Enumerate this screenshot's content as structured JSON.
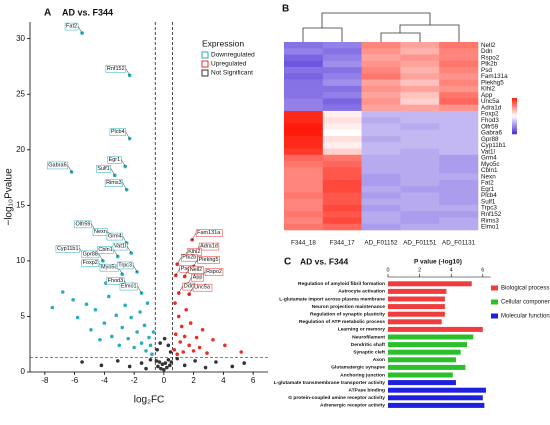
{
  "chart_data": [
    {
      "type": "scatter",
      "panel": "A",
      "title": "AD vs. F344",
      "xlabel": "log₂FC",
      "ylabel": "−log₁₀Pvalue",
      "xlim": [
        -9,
        7
      ],
      "ylim": [
        0,
        31.5
      ],
      "xticks": [
        -8,
        -6,
        -4,
        -2,
        0,
        2,
        4,
        6
      ],
      "yticks": [
        0,
        5,
        10,
        15,
        20,
        25,
        30
      ],
      "thresholds": {
        "x": [
          -0.58,
          0.58
        ],
        "y": 1.3
      },
      "legend": {
        "title": "Expression",
        "position": "top-right"
      },
      "series": [
        {
          "name": "Downregulated",
          "color": "#2aaec0",
          "x": [
            -5.5,
            -2.3,
            -2.3,
            -6.2,
            -2.6,
            -3.3,
            -2.5,
            -4.6,
            -3.5,
            -2.5,
            -5.4,
            -4.1,
            -3.1,
            -2.2,
            -4.1,
            -2.8,
            -1.8,
            -2.4,
            -1.5,
            -6.8,
            -6.1,
            -5.8,
            -5.2,
            -4.9,
            -4.6,
            -4.3,
            -4.0,
            -3.7,
            -3.5,
            -3.2,
            -3.0,
            -2.8,
            -2.6,
            -2.4,
            -2.2,
            -2.0,
            -1.8,
            -1.6,
            -1.5,
            -1.3,
            -1.2,
            -1.0,
            -0.9,
            -0.8,
            -0.7,
            -7.5,
            -3.9,
            -2.1,
            -1.1
          ],
          "y": [
            30.5,
            26.7,
            21.0,
            18.0,
            18.5,
            17.7,
            16.4,
            12.7,
            12.0,
            11.6,
            10.5,
            10.0,
            10.4,
            10.7,
            9.2,
            8.8,
            9.0,
            7.6,
            7.1,
            7.2,
            6.5,
            4.9,
            6.1,
            3.8,
            5.6,
            2.9,
            4.4,
            6.8,
            3.2,
            5.1,
            2.4,
            4.0,
            6.0,
            3.0,
            4.9,
            2.2,
            3.6,
            5.4,
            2.6,
            4.2,
            1.9,
            3.1,
            2.4,
            1.6,
            3.6,
            5.8,
            8.0,
            7.9,
            6.2
          ],
          "labels": [
            "Fat2",
            "Rnf152",
            "Plcb4",
            "Gabra6",
            "Egr1",
            "Sulf1",
            "Rims3",
            "Olfr59",
            "Nexn",
            "Grm4",
            "Cyp11b1",
            "Gpr88",
            "Cbln1",
            "Vat1l",
            "Foxp2",
            "Myo5c",
            "Trpc3",
            "Fhod3",
            "Elmo1",
            null,
            null,
            null,
            null,
            null,
            null,
            null,
            null,
            null,
            null,
            null,
            null,
            null,
            null,
            null,
            null,
            null,
            null,
            null,
            null,
            null,
            null,
            null,
            null,
            null,
            null,
            null,
            null,
            null,
            null
          ]
        },
        {
          "name": "Upregulated",
          "color": "#e8302a",
          "x": [
            1.9,
            2.1,
            1.3,
            0.9,
            2.0,
            0.8,
            1.4,
            2.5,
            1.6,
            1.0,
            1.7,
            0.7,
            0.8,
            0.9,
            1.0,
            1.1,
            1.2,
            1.3,
            1.4,
            1.5,
            1.7,
            1.8,
            2.0,
            2.2,
            2.4,
            2.6,
            2.9,
            3.3,
            4.1,
            5.2,
            0.75
          ],
          "y": [
            11.9,
            10.7,
            10.2,
            9.7,
            9.5,
            8.7,
            8.6,
            8.4,
            7.9,
            7.1,
            7.0,
            2.0,
            3.4,
            1.6,
            5.0,
            2.7,
            4.1,
            1.8,
            3.2,
            5.6,
            2.4,
            4.4,
            1.9,
            3.1,
            2.2,
            3.8,
            1.7,
            2.9,
            2.4,
            1.8,
            6.2
          ],
          "labels": [
            "Fam131a",
            "Adra1d",
            "Klhl2",
            "Ptk2b",
            "Plekhg5",
            "Psd",
            "Nell2",
            "Rspo2",
            "App",
            "Ddn",
            "Unc5a",
            null,
            null,
            null,
            null,
            null,
            null,
            null,
            null,
            null,
            null,
            null,
            null,
            null,
            null,
            null,
            null,
            null,
            null,
            null,
            null
          ]
        },
        {
          "name": "Not Significant",
          "color": "#333333",
          "x": [
            -0.5,
            -0.4,
            -0.3,
            -0.2,
            -0.1,
            0.0,
            0.1,
            0.2,
            0.3,
            0.4,
            0.5,
            -0.45,
            -0.25,
            0.05,
            0.3,
            0.45,
            -1.5,
            -2.3,
            -3.1,
            1.4,
            2.1,
            2.8,
            3.5,
            4.6,
            5.4,
            -4.2,
            -5.5,
            -0.9,
            0.9,
            -1.2
          ],
          "y": [
            1.0,
            0.5,
            0.9,
            0.3,
            0.7,
            0.2,
            0.8,
            0.4,
            1.1,
            0.6,
            0.9,
            2.0,
            2.6,
            3.0,
            2.4,
            1.8,
            0.8,
            0.5,
            1.0,
            0.6,
            1.0,
            0.4,
            0.9,
            0.5,
            0.8,
            0.6,
            0.9,
            1.1,
            1.2,
            0.3
          ]
        }
      ]
    },
    {
      "type": "heatmap",
      "panel": "B",
      "rows": [
        "Nell2",
        "Ddn",
        "Rspo2",
        "Ptk2b",
        "Psd",
        "Fam131a",
        "Plekhg5",
        "Klhl2",
        "App",
        "Unc5a",
        "Adra1d",
        "Foxp2",
        "Fhod3",
        "Olfr59",
        "Gabra6",
        "Gpr88",
        "Cyp11b1",
        "Vat1l",
        "Grm4",
        "Myo5c",
        "Cbln1",
        "Nexn",
        "Fat2",
        "Egr1",
        "Plcb4",
        "Sulf1",
        "Trpc3",
        "Rnf152",
        "Rims3",
        "Elmo1"
      ],
      "columns": [
        "F344_18",
        "F344_17",
        "AD_F01152",
        "AD_F01151",
        "AD_F01131"
      ],
      "values": [
        [
          -1.0,
          -0.9,
          0.8,
          0.6,
          0.9
        ],
        [
          -0.9,
          -1.0,
          0.7,
          0.5,
          0.8
        ],
        [
          -1.1,
          -0.9,
          0.6,
          0.7,
          0.8
        ],
        [
          -1.2,
          -0.8,
          0.7,
          0.6,
          0.9
        ],
        [
          -1.0,
          -1.0,
          0.8,
          0.5,
          0.8
        ],
        [
          -1.1,
          -0.9,
          0.9,
          0.6,
          0.7
        ],
        [
          -1.0,
          -0.8,
          0.6,
          0.4,
          0.8
        ],
        [
          -1.0,
          -1.0,
          0.7,
          0.6,
          0.7
        ],
        [
          -1.0,
          -0.9,
          0.6,
          0.4,
          0.9
        ],
        [
          -0.9,
          -1.1,
          0.7,
          0.3,
          1.0
        ],
        [
          -0.9,
          -1.0,
          0.6,
          0.6,
          0.7
        ],
        [
          1.4,
          0.1,
          -0.5,
          -0.5,
          -0.5
        ],
        [
          1.4,
          0.2,
          -0.6,
          -0.5,
          -0.5
        ],
        [
          1.5,
          0.1,
          -0.5,
          -0.6,
          -0.5
        ],
        [
          1.5,
          0.0,
          -0.5,
          -0.5,
          -0.5
        ],
        [
          1.4,
          0.2,
          -0.6,
          -0.5,
          -0.5
        ],
        [
          1.4,
          0.1,
          -0.5,
          -0.5,
          -0.5
        ],
        [
          1.3,
          0.3,
          -0.5,
          -0.6,
          -0.5
        ],
        [
          1.0,
          0.9,
          -0.6,
          -0.6,
          -0.7
        ],
        [
          0.9,
          1.0,
          -0.6,
          -0.6,
          -0.7
        ],
        [
          0.8,
          1.1,
          -0.6,
          -0.6,
          -0.7
        ],
        [
          0.8,
          1.1,
          -0.7,
          -0.6,
          -0.6
        ],
        [
          0.8,
          1.2,
          -0.7,
          -0.6,
          -0.7
        ],
        [
          0.8,
          1.2,
          -0.6,
          -0.7,
          -0.7
        ],
        [
          0.9,
          1.1,
          -0.7,
          -0.6,
          -0.7
        ],
        [
          0.8,
          1.1,
          -0.6,
          -0.6,
          -0.7
        ],
        [
          0.8,
          1.2,
          -0.7,
          -0.6,
          -0.6
        ],
        [
          0.9,
          1.1,
          -0.6,
          -0.7,
          -0.7
        ],
        [
          0.8,
          1.2,
          -0.6,
          -0.7,
          -0.6
        ],
        [
          0.9,
          1.0,
          -0.7,
          -0.6,
          -0.6
        ]
      ],
      "zlim": [
        -1.5,
        1.5
      ],
      "colors": [
        "#4b2bd8",
        "#ffffff",
        "#ff1a0a"
      ]
    },
    {
      "type": "bar",
      "orientation": "horizontal",
      "panel": "C",
      "title": "AD vs. F344",
      "xlabel": "P value (-log10)",
      "xlim": [
        0,
        6.5
      ],
      "xticks": [
        0,
        2,
        4,
        6
      ],
      "legend": {
        "position": "right"
      },
      "series": [
        {
          "name": "Biological process",
          "color": "#f03c3c",
          "categories": [
            "Regulation of amyloid fibril formation",
            "Astrocyte activation",
            "L-glutamate import across plasma membrane",
            "Neuron projection maintenance",
            "Regulation of synaptic plasticity",
            "Regulation of ATP metabolic process",
            "Learning or memory"
          ],
          "values": [
            5.3,
            3.7,
            3.6,
            3.6,
            3.6,
            3.4,
            6.0
          ]
        },
        {
          "name": "Cellular component",
          "color": "#2bbf2b",
          "categories": [
            "Neurofilament",
            "Dendritic shaft",
            "Synaptic cleft",
            "Axon",
            "Glutamatergic synapse",
            "Anchoring junction"
          ],
          "values": [
            5.4,
            5.0,
            4.6,
            4.3,
            4.9,
            4.1
          ]
        },
        {
          "name": "Molecular function",
          "color": "#1f1fe0",
          "categories": [
            "L-glutamate transmembrane transporter activity",
            "ATPase binding",
            "G protein-coupled amine receptor activity",
            "Adrenergic receptor activity"
          ],
          "values": [
            4.3,
            6.2,
            6.0,
            6.1
          ]
        }
      ]
    }
  ]
}
